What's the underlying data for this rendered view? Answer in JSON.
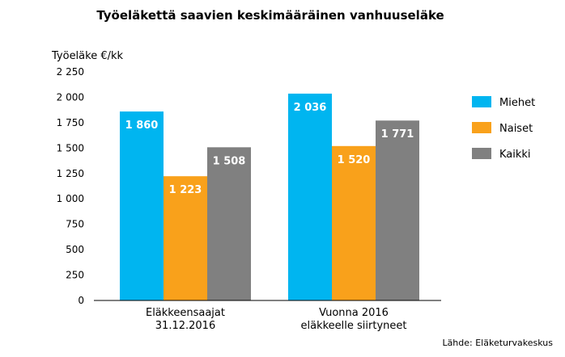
{
  "chart_data": {
    "type": "bar",
    "title": "Työeläkettä saavien keskimääräinen vanhuuseläke",
    "ylabel": "Työeläke €/kk",
    "xlabel": "",
    "ylim": [
      0,
      2250
    ],
    "yticks": [
      0,
      250,
      500,
      750,
      1000,
      1250,
      1500,
      1750,
      2000,
      2250
    ],
    "ytick_labels": [
      "0",
      "250",
      "500",
      "750",
      "1 000",
      "1 250",
      "1 500",
      "1 750",
      "2 000",
      "2 250"
    ],
    "categories": [
      [
        "Eläkkeensaajat",
        "31.12.2016"
      ],
      [
        "Vuonna 2016",
        "eläkkeelle siirtyneet"
      ]
    ],
    "series": [
      {
        "name": "Miehet",
        "color": "#00b5f0",
        "values": [
          1860,
          2036
        ],
        "labels": [
          "1 860",
          "2 036"
        ]
      },
      {
        "name": "Naiset",
        "color": "#f9a11b",
        "values": [
          1223,
          1520
        ],
        "labels": [
          "1 223",
          "1 520"
        ]
      },
      {
        "name": "Kaikki",
        "color": "#808080",
        "values": [
          1508,
          1771
        ],
        "labels": [
          "1 508",
          "1 771"
        ]
      }
    ],
    "grid": false,
    "legend": "right",
    "source": "Lähde: Eläketurvakeskus"
  }
}
